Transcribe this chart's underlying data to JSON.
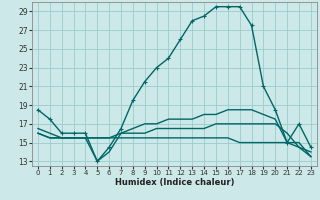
{
  "xlabel": "Humidex (Indice chaleur)",
  "bg_color": "#cce8e8",
  "grid_color": "#99cccc",
  "line_color": "#006666",
  "linewidth": 1.0,
  "xlim": [
    -0.5,
    23.5
  ],
  "ylim": [
    12.5,
    30.0
  ],
  "yticks": [
    13,
    15,
    17,
    19,
    21,
    23,
    25,
    27,
    29
  ],
  "xticks": [
    0,
    1,
    2,
    3,
    4,
    5,
    6,
    7,
    8,
    9,
    10,
    11,
    12,
    13,
    14,
    15,
    16,
    17,
    18,
    19,
    20,
    21,
    22,
    23
  ],
  "series_with_markers": [
    [
      18.5,
      17.5,
      16.0,
      16.0,
      16.0,
      13.0,
      14.5,
      16.5,
      19.5,
      21.5,
      23.0,
      24.0,
      26.0,
      28.0,
      28.5,
      29.5,
      29.5,
      29.5,
      27.5,
      21.0,
      18.5,
      15.0,
      17.0,
      14.5
    ]
  ],
  "series_no_markers": [
    [
      16.5,
      16.0,
      15.5,
      15.5,
      15.5,
      13.0,
      14.0,
      16.0,
      16.5,
      17.0,
      17.0,
      17.5,
      17.5,
      17.5,
      18.0,
      18.0,
      18.5,
      18.5,
      18.5,
      18.0,
      17.5,
      15.0,
      15.0,
      13.5
    ],
    [
      16.0,
      15.5,
      15.5,
      15.5,
      15.5,
      15.5,
      15.5,
      16.0,
      16.0,
      16.0,
      16.5,
      16.5,
      16.5,
      16.5,
      16.5,
      17.0,
      17.0,
      17.0,
      17.0,
      17.0,
      17.0,
      16.0,
      14.5,
      14.0
    ],
    [
      16.0,
      15.5,
      15.5,
      15.5,
      15.5,
      15.5,
      15.5,
      15.5,
      15.5,
      15.5,
      15.5,
      15.5,
      15.5,
      15.5,
      15.5,
      15.5,
      15.5,
      15.0,
      15.0,
      15.0,
      15.0,
      15.0,
      14.5,
      13.5
    ]
  ]
}
